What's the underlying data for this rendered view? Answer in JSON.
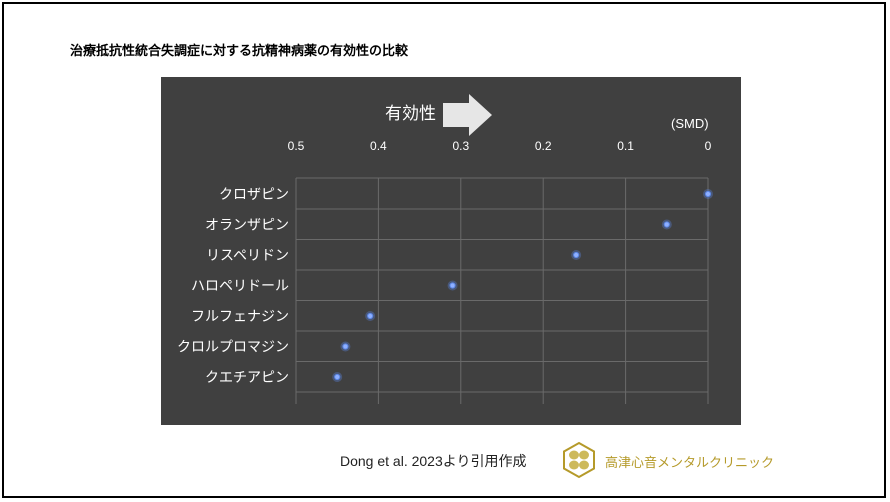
{
  "slide_title": "治療抵抗性統合失調症に対する抗精神病薬の有効性の比較",
  "source_text": "Dong et al. 2023より引用作成",
  "clinic_name": "高津心音メンタルクリニック",
  "logo_icon": "clover-hexagon-icon",
  "colors": {
    "chart_background": "#404040",
    "grid": "#6a6a6a",
    "text": "#ffffff",
    "point": "#5b86e5",
    "arrow": "#e0e0e0",
    "brand": "#b59a2a"
  },
  "chart_data": {
    "type": "scatter",
    "title": "",
    "direction_label": "有効性",
    "direction_icon": "right-arrow-icon",
    "unit_label": "(SMD)",
    "xlim": [
      0.5,
      0
    ],
    "x_reversed": true,
    "x_ticks": [
      0.5,
      0.4,
      0.3,
      0.2,
      0.1,
      0
    ],
    "x_tick_labels": [
      "0.5",
      "0.4",
      "0.3",
      "0.2",
      "0.1",
      "0"
    ],
    "grid": true,
    "categories": [
      "クロザピン",
      "オランザピン",
      "リスペリドン",
      "ハロペリドール",
      "フルフェナジン",
      "クロルプロマジン",
      "クエチアピン"
    ],
    "values": [
      0.0,
      0.05,
      0.16,
      0.31,
      0.41,
      0.44,
      0.45
    ]
  }
}
